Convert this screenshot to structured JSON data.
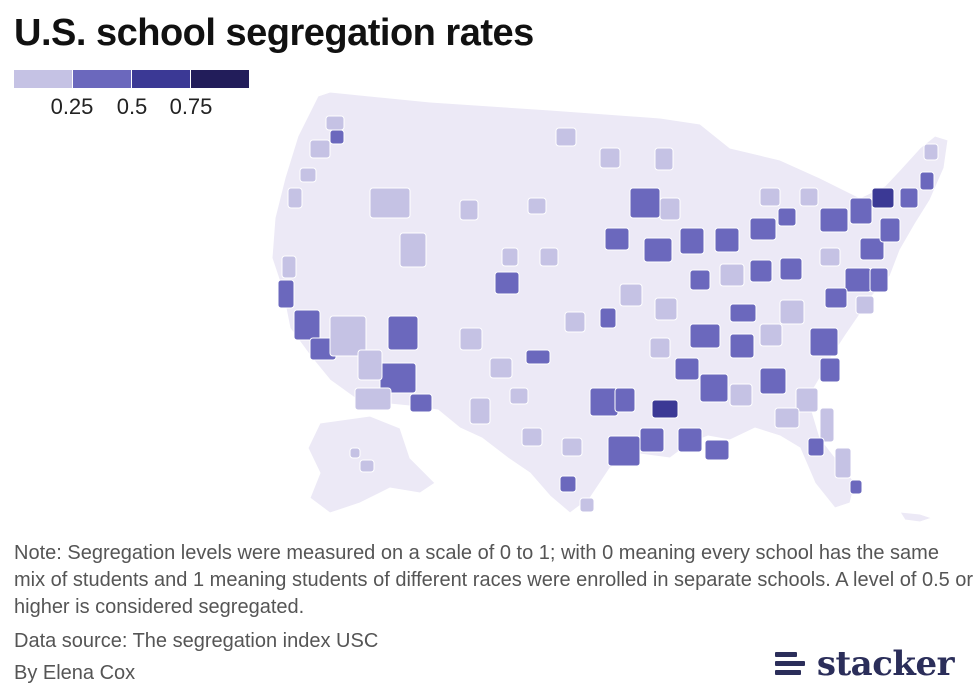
{
  "title": "U.S. school segregation rates",
  "legend": {
    "colors": [
      "#c5c2e4",
      "#6b68bd",
      "#3b3995",
      "#221d5a"
    ],
    "ticks": [
      "0.25",
      "0.5",
      "0.75"
    ]
  },
  "map": {
    "colors": {
      "base": "#ece9f6",
      "low": "#c5c2e4",
      "mid": "#6b68bd",
      "high": "#3b3995",
      "top": "#221d5a"
    }
  },
  "note": "Note: Segregation levels were measured on a scale of 0 to 1; with 0 meaning every school has the same mix of students and 1 meaning students of different races were enrolled in separate schools. A level of 0.5 or higher is considered segregated.",
  "source": "Data source: The segregation index USC",
  "byline": "By Elena Cox",
  "brand": {
    "name": "stacker",
    "color": "#2b2e5a"
  }
}
